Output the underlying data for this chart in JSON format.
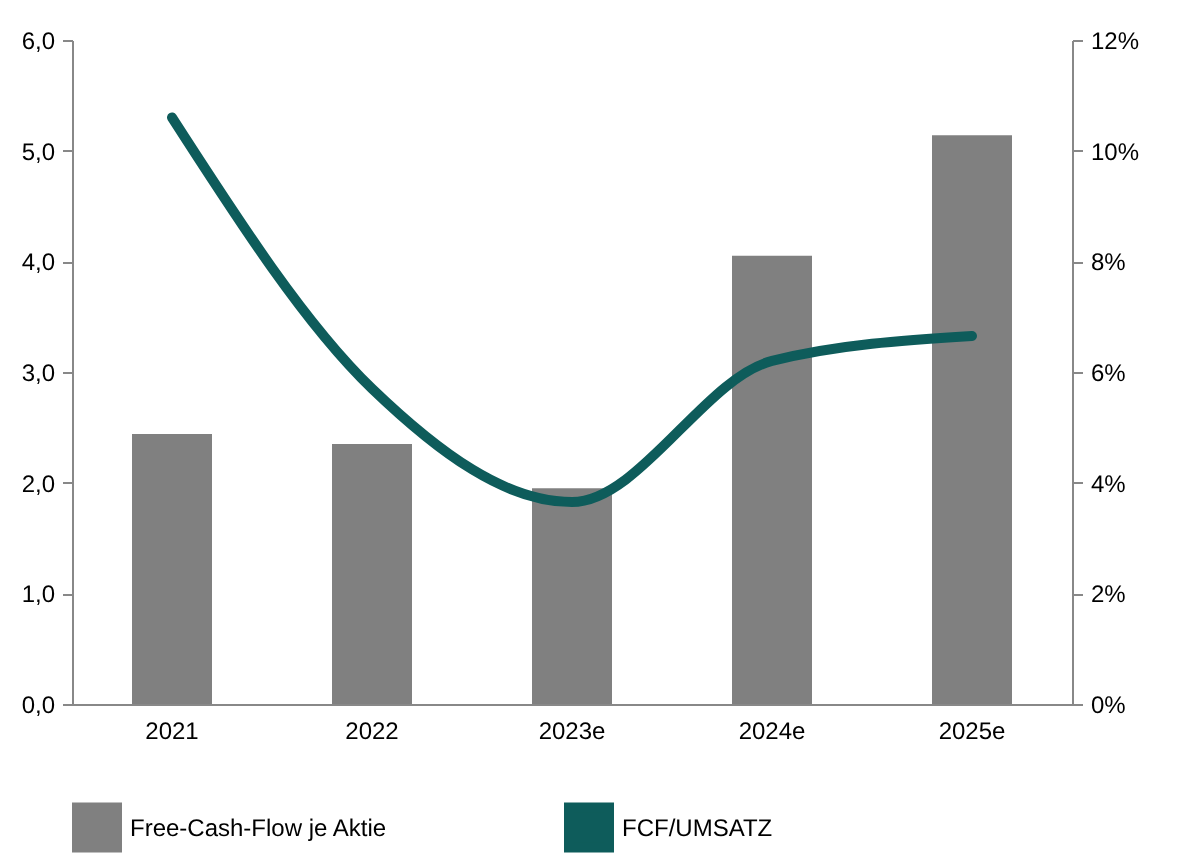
{
  "chart_data": {
    "type": "bar",
    "categories": [
      "2021",
      "2022",
      "2023e",
      "2024e",
      "2025e"
    ],
    "series": [
      {
        "name": "Free-Cash-Flow je Aktie",
        "color": "#808080",
        "values": [
          2.44,
          2.35,
          1.95,
          4.05,
          5.14
        ]
      },
      {
        "name": "FCF/UMSATZ",
        "type": "line",
        "axis": "y2",
        "color": "#0e5c5b",
        "values": [
          10.6,
          5.7,
          3.65,
          6.2,
          6.65
        ]
      }
    ],
    "ylim": [
      0,
      6
    ],
    "yticks": [
      {
        "value": 0,
        "label": "0,0"
      },
      {
        "value": 1,
        "label": "1,0"
      },
      {
        "value": 2,
        "label": "2,0"
      },
      {
        "value": 3,
        "label": "3,0"
      },
      {
        "value": 4,
        "label": "4,0"
      },
      {
        "value": 5,
        "label": "5,0"
      },
      {
        "value": 6,
        "label": "6,0"
      }
    ],
    "y2lim": [
      0,
      12
    ],
    "y2ticks": [
      {
        "value": 0,
        "label": "0%"
      },
      {
        "value": 2,
        "label": "2%"
      },
      {
        "value": 4,
        "label": "4%"
      },
      {
        "value": 6,
        "label": "6%"
      },
      {
        "value": 8,
        "label": "8%"
      },
      {
        "value": 10,
        "label": "10%"
      },
      {
        "value": 12,
        "label": "12%"
      }
    ],
    "grid": false,
    "legend": "bottom"
  }
}
